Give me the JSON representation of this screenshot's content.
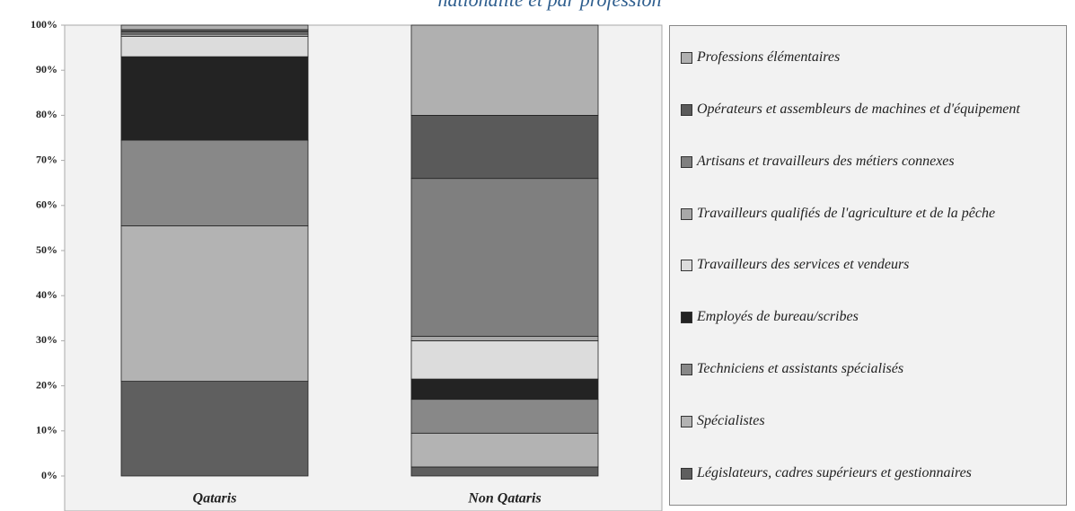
{
  "chart_data": {
    "type": "stacked_bar",
    "title": "nationalité et par profession",
    "categories": [
      "Qataris",
      "Non Qataris"
    ],
    "series": [
      {
        "name": "Législateurs, cadres supérieurs et gestionnaires",
        "color": "#5f5f5f",
        "values": [
          21,
          2
        ]
      },
      {
        "name": "Spécialistes",
        "color": "#b3b3b3",
        "values": [
          34.5,
          7.5
        ]
      },
      {
        "name": "Techniciens et assistants spécialisés",
        "color": "#888888",
        "values": [
          19,
          7.5
        ]
      },
      {
        "name": "Employés de bureau/scribes",
        "color": "#232323",
        "values": [
          18.5,
          4.5
        ]
      },
      {
        "name": "Travailleurs des services et vendeurs",
        "color": "#dcdcdc",
        "values": [
          4.5,
          8.5
        ]
      },
      {
        "name": "Travailleurs qualifiés de l'agriculture et de la pêche",
        "color": "#a8a8a8",
        "values": [
          0.5,
          1
        ]
      },
      {
        "name": "Artisans et travailleurs des métiers connexes",
        "color": "#7f7f7f",
        "values": [
          0.5,
          35
        ]
      },
      {
        "name": "Opérateurs et assembleurs de machines et d'équipement",
        "color": "#5a5a5a",
        "values": [
          0.5,
          14
        ]
      },
      {
        "name": "Professions élémentaires",
        "color": "#b0b0b0",
        "values": [
          1,
          20
        ]
      }
    ],
    "ylim": [
      0,
      100
    ],
    "yticks": [
      {
        "value": 0,
        "label": "0%"
      },
      {
        "value": 10,
        "label": "10%"
      },
      {
        "value": 20,
        "label": "20%"
      },
      {
        "value": 30,
        "label": "30%"
      },
      {
        "value": 40,
        "label": "40%"
      },
      {
        "value": 50,
        "label": "50%"
      },
      {
        "value": 60,
        "label": "60%"
      },
      {
        "value": 70,
        "label": "70%"
      },
      {
        "value": 80,
        "label": "80%"
      },
      {
        "value": 90,
        "label": "90%"
      },
      {
        "value": 100,
        "label": "100%"
      }
    ],
    "legend": "right"
  }
}
